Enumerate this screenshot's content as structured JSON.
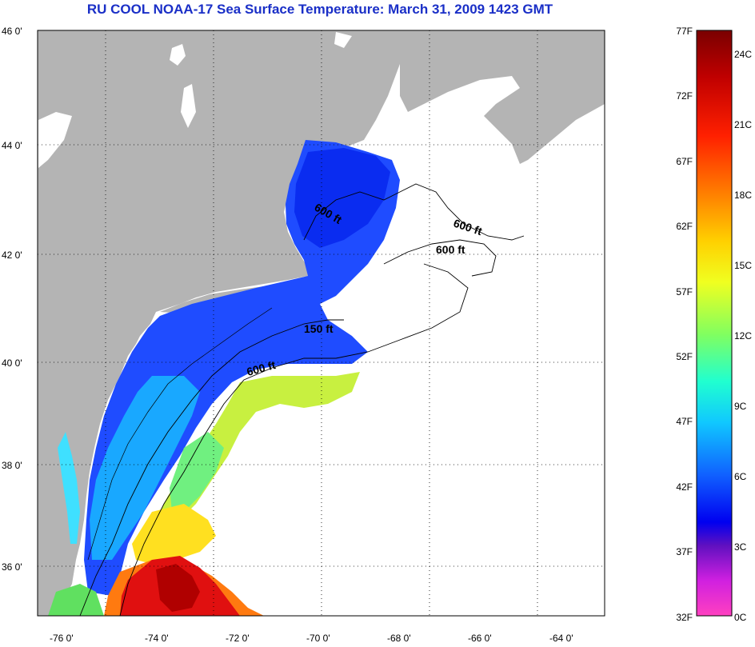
{
  "title": "RU COOL  NOAA-17  Sea Surface Temperature:  March 31, 2009 1423 GMT",
  "lat_labels": [
    "46 0'",
    "44 0'",
    "42 0'",
    "40 0'",
    "38 0'",
    "36 0'"
  ],
  "lon_labels": [
    "-76 0'",
    "-74 0'",
    "-72 0'",
    "-70 0'",
    "-68 0'",
    "-66 0'",
    "-64 0'"
  ],
  "contour_labels": {
    "gulf_maine": "600 ft",
    "georges_north": "600 ft",
    "georges_south": "600 ft",
    "shelf_150": "150 ft",
    "shelf_600": "600 ft"
  },
  "colorbar": {
    "fahrenheit": [
      "77F",
      "72F",
      "67F",
      "62F",
      "57F",
      "52F",
      "47F",
      "42F",
      "37F",
      "32F"
    ],
    "celsius": [
      "24C",
      "21C",
      "18C",
      "15C",
      "12C",
      "9C",
      "6C",
      "3C",
      "0C"
    ]
  },
  "colors": {
    "land": "#b4b4b4",
    "title": "#1a2fc7"
  }
}
